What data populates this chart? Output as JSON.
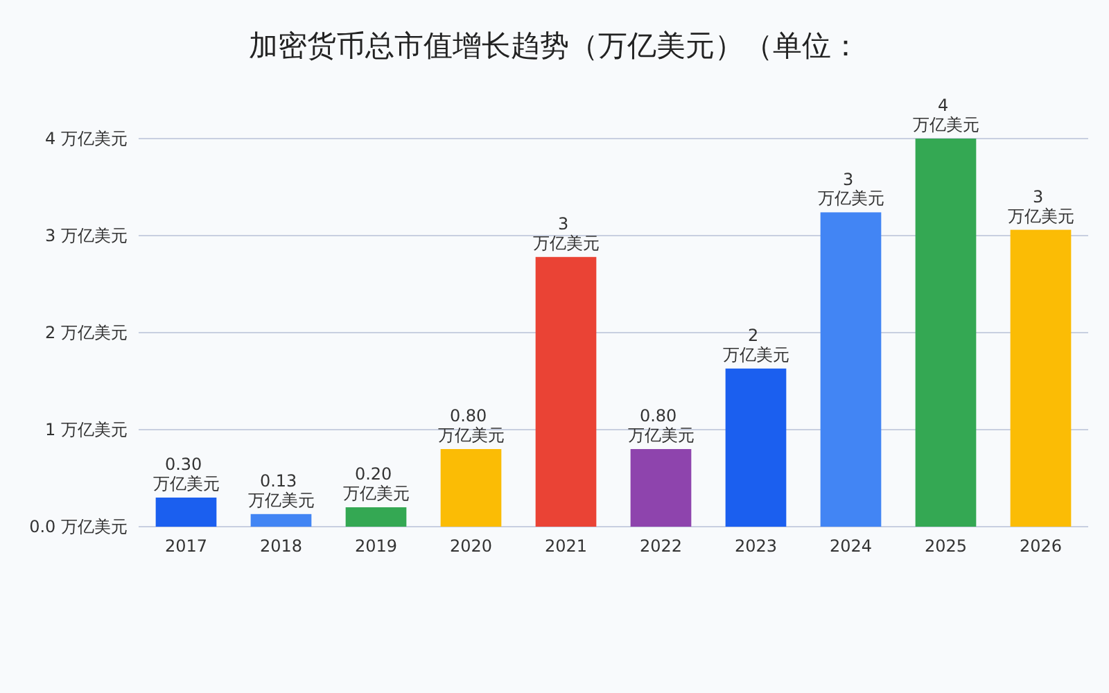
{
  "chart_data": {
    "type": "bar",
    "title": "加密货币总市值增长趋势（万亿美元）（单位：",
    "categories": [
      "2017",
      "2018",
      "2019",
      "2020",
      "2021",
      "2022",
      "2023",
      "2024",
      "2025",
      "2026"
    ],
    "values": [
      0.3,
      0.13,
      0.2,
      0.8,
      2.78,
      0.8,
      1.63,
      3.24,
      4.0,
      3.06
    ],
    "colors": [
      "#1b5fef",
      "#4285f4",
      "#34a853",
      "#fbbc05",
      "#ea4335",
      "#8e44ad",
      "#1b5fef",
      "#4285f4",
      "#34a853",
      "#fbbc05"
    ],
    "value_labels": [
      "0.30 万亿美元",
      "0.13 万亿美元",
      "0.20 万亿美元",
      "0.80 万亿美元",
      "3 万亿美元",
      "0.80 万亿美元",
      "2 万亿美元",
      "3 万亿美元",
      "4 万亿美元",
      "3 万亿美元"
    ],
    "ylim": [
      0,
      4
    ],
    "yticks": [
      {
        "value": 0,
        "label": "0.0 万亿美元"
      },
      {
        "value": 1,
        "label": "1 万亿美元"
      },
      {
        "value": 2,
        "label": "2 万亿美元"
      },
      {
        "value": 3,
        "label": "3 万亿美元"
      },
      {
        "value": 4,
        "label": "4 万亿美元"
      }
    ],
    "grid": "y"
  }
}
